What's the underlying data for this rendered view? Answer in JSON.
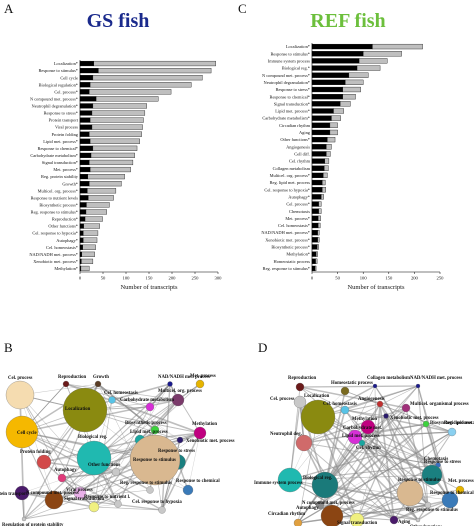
{
  "panels": {
    "a": {
      "letter": "A",
      "title": "GS fish",
      "title_color": "#1a2a8c"
    },
    "b": {
      "letter": "B"
    },
    "c": {
      "letter": "C",
      "title": "REF fish",
      "title_color": "#6cbf3c"
    },
    "d": {
      "letter": "D"
    }
  },
  "chart_data": [
    {
      "type": "bar",
      "panel": "A",
      "title": "GS fish",
      "xlabel": "Number of transcripts",
      "ylabel": "",
      "xlim": [
        0,
        300
      ],
      "xticks": [
        0,
        50,
        100,
        150,
        200,
        250,
        300
      ],
      "stacked": true,
      "categories": [
        "Methylation*",
        "Xenobiotic met. process*",
        "NAD/NADH met. process*",
        "Cel. homeostasis*",
        "Autophagy*",
        "Cel. response to hypoxia*",
        "Other functions*",
        "Reproduction*",
        "Reg. response to stimulus*",
        "Biosynthetic process*",
        "Response to nutrient levels",
        "Multicel. org. process*",
        "Growth*",
        "Reg. protein stability",
        "Met. process*",
        "Signal transduction*",
        "Carbohydrate metabolism*",
        "Response to chemical*",
        "Lipid met. process*",
        "Protein folding",
        "Viral process",
        "Protein transport",
        "Response to stress*",
        "Neutrophil degranulation*",
        "N compound met. process*",
        "Cel. process*",
        "Biological regulation*",
        "Cell cycle",
        "Response to stimulus*",
        "Localization*"
      ],
      "series": [
        {
          "values": [
            2,
            3,
            4,
            6,
            7,
            7,
            8,
            11,
            13,
            14,
            18,
            16,
            20,
            17,
            22,
            20,
            24,
            28,
            22,
            20,
            26,
            22,
            26,
            28,
            35,
            20,
            22,
            28,
            40,
            30
          ],
          "color": "#000000"
        },
        {
          "values": [
            18,
            25,
            28,
            28,
            30,
            32,
            35,
            38,
            45,
            50,
            55,
            62,
            70,
            80,
            88,
            95,
            95,
            96,
            108,
            114,
            110,
            116,
            115,
            117,
            135,
            178,
            220,
            238,
            245,
            265
          ],
          "color": "#bfbfbf"
        }
      ]
    },
    {
      "type": "bar",
      "panel": "C",
      "title": "REF fish",
      "xlabel": "Number of transcripts",
      "ylabel": "",
      "xlim": [
        0,
        250
      ],
      "xticks": [
        0,
        50,
        100,
        150,
        200,
        250
      ],
      "stacked": true,
      "categories": [
        "Reg. response to stimulus*",
        "Homeostatic process",
        "Methylation*",
        "Biosynthetic process*",
        "Xenobiotic met. process*",
        "NAD/NADH met. process*",
        "Cel. homeostasis*",
        "Met. process*",
        "Chemotaxis",
        "Cel. process*",
        "Autophagy*",
        "Cel. response to hypoxia*",
        "Reg. lipid met. process",
        "Multicel. org. process*",
        "Collagen metabolism",
        "Cel. rhythm",
        "Cell diff.",
        "Angiogenesis",
        "Other functions*",
        "Aging",
        "Circadian rhythm",
        "Carbohydrate metabolism*",
        "Lipid met. process*",
        "Signal transduction*",
        "Response to chemical*",
        "Response to stress*",
        "Neutrophil degranulation*",
        "N compound met. process*",
        "Biological reg.*",
        "Immune system process",
        "Response to stimulus*",
        "Localization*"
      ],
      "series": [
        {
          "values": [
            6,
            7,
            8,
            10,
            11,
            11,
            12,
            12,
            13,
            13,
            18,
            20,
            20,
            22,
            24,
            25,
            28,
            28,
            30,
            35,
            35,
            38,
            42,
            55,
            60,
            60,
            65,
            72,
            88,
            92,
            100,
            118
          ],
          "color": "#000000"
        },
        {
          "values": [
            2,
            3,
            3,
            3,
            3,
            3,
            4,
            5,
            5,
            5,
            5,
            7,
            6,
            8,
            8,
            8,
            8,
            10,
            15,
            15,
            15,
            18,
            20,
            20,
            25,
            35,
            35,
            38,
            45,
            55,
            75,
            98
          ],
          "color": "#bfbfbf"
        }
      ]
    }
  ],
  "network_b": {
    "nodes": [
      {
        "label": "Cel. process",
        "color": "#f5dcb0"
      },
      {
        "label": "Reproduction",
        "color": "#6b1a1a"
      },
      {
        "label": "Growth",
        "color": "#5a3d25"
      },
      {
        "label": "NAD/NADH met. process",
        "color": "#1a1a8c"
      },
      {
        "label": "Met. process",
        "color": "#e6b400"
      },
      {
        "label": "Localization",
        "color": "#8a8a10"
      },
      {
        "label": "Cel. homeostasis",
        "color": "#58c3e6"
      },
      {
        "label": "Carbohydrate metabolism",
        "color": "#d62fd6"
      },
      {
        "label": "Multicel. org. process",
        "color": "#7a3a6a"
      },
      {
        "label": "Biosynthetic process",
        "color": "#3dd23d"
      },
      {
        "label": "Cell cycle",
        "color": "#f5b800"
      },
      {
        "label": "Methylation",
        "color": "#c00080"
      },
      {
        "label": "Xenobiotic met. process",
        "color": "#2a1a6b"
      },
      {
        "label": "Lipid met. process",
        "color": "#1aa6a0"
      },
      {
        "label": "Response to stress",
        "color": "#1a8080"
      },
      {
        "label": "Biological reg.",
        "color": "#20b9b0"
      },
      {
        "label": "Response to stimulus",
        "color": "#d9b890"
      },
      {
        "label": "Protein folding",
        "color": "#d24a4a"
      },
      {
        "label": "Other functions",
        "color": "#c8c8c8"
      },
      {
        "label": "Autophagy",
        "color": "#e03a7a"
      },
      {
        "label": "Viral process",
        "color": "#e8b0e8"
      },
      {
        "label": "Reg. response to stimulus",
        "color": "#c8c8c8"
      },
      {
        "label": "Response to chemical",
        "color": "#3a7ab8"
      },
      {
        "label": "Protein transport",
        "color": "#4a1a6a"
      },
      {
        "label": "N compound met. process",
        "color": "#8b4513"
      },
      {
        "label": "Response to nutrient l.",
        "color": "#c8c8c8"
      },
      {
        "label": "Signal transduction",
        "color": "#f0f080"
      },
      {
        "label": "Cel. response to hypoxia",
        "color": "#c8c8c8"
      },
      {
        "label": "Regulation of protein stability",
        "color": "#c8c8c8"
      }
    ]
  },
  "network_d": {
    "nodes": [
      {
        "label": "Reproduction",
        "color": "#6b1a1a"
      },
      {
        "label": "Homeostatic process",
        "color": "#7a6a20"
      },
      {
        "label": "Collagen metabolism",
        "color": "#1a1a8c"
      },
      {
        "label": "NAD/NADH met. process",
        "color": "#1a1a8c"
      },
      {
        "label": "Cel. process",
        "color": "#c8c8c8"
      },
      {
        "label": "Localization",
        "color": "#8a8a10"
      },
      {
        "label": "Angiogenesis",
        "color": "#c03030"
      },
      {
        "label": "Multicel. organismal process",
        "color": "#a0307a"
      },
      {
        "label": "Cel. homeostasis",
        "color": "#58c3e6"
      },
      {
        "label": "Xenobiotic met. process",
        "color": "#2a1a6b"
      },
      {
        "label": "Methylation",
        "color": "#c00080"
      },
      {
        "label": "Carbohydrate met.",
        "color": "#d62fd6"
      },
      {
        "label": "Biosynthetic process",
        "color": "#3dd23d"
      },
      {
        "label": "Reg. lipid metabolic process",
        "color": "#8ad0f0"
      },
      {
        "label": "Neutrophil deg.",
        "color": "#d06a6a"
      },
      {
        "label": "Lipid met. process",
        "color": "#1aa6a0"
      },
      {
        "label": "Cel. rhythm",
        "color": "#c8c8c8"
      },
      {
        "label": "Chemotaxis",
        "color": "#3a70c0"
      },
      {
        "label": "Response to stress",
        "color": "#1a8080"
      },
      {
        "label": "Immune system process",
        "color": "#20b9b0"
      },
      {
        "label": "Biological reg.",
        "color": "#1a7a7a"
      },
      {
        "label": "Response to stimulus",
        "color": "#d9b890"
      },
      {
        "label": "Response to chemical",
        "color": "#3a7ab8"
      },
      {
        "label": "Reg. response to stimulus",
        "color": "#c8c8c8"
      },
      {
        "label": "Autophagy",
        "color": "#8a8a8a"
      },
      {
        "label": "Circadian rhythm",
        "color": "#e0a040"
      },
      {
        "label": "N compound met. process",
        "color": "#8b4513"
      },
      {
        "label": "Signal transduction",
        "color": "#f0f080"
      },
      {
        "label": "Aging",
        "color": "#4a1a6a"
      },
      {
        "label": "Other functions",
        "color": "#c8c8c8"
      },
      {
        "label": "Met. process",
        "color": "#e6b400"
      }
    ]
  }
}
